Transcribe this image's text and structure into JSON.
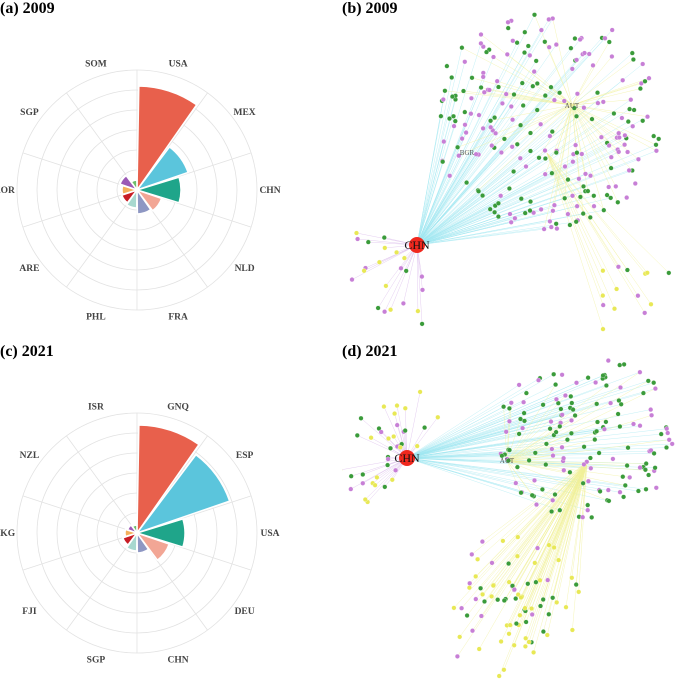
{
  "colors": {
    "palette": [
      "#e8604c",
      "#5bc5dc",
      "#1fa58a",
      "#f2a695",
      "#8e97c3",
      "#a8d8cf",
      "#c81d25",
      "#f4b05c",
      "#7ec8e3",
      "#9b59b6",
      "#6dbd6a"
    ],
    "grid": "#e2e2e2",
    "edge_cyan": "#9fe6f0",
    "edge_yellow": "#f0f09a",
    "edge_purple": "#d9b8ea",
    "node_green": "#3a9b3a",
    "node_purple": "#c77fd6",
    "node_yellow": "#e8e855",
    "hub": "#f0281e"
  },
  "panels": {
    "a": {
      "title": "(a) 2009"
    },
    "b": {
      "title": "(b) 2009",
      "hub_label": "CHN",
      "mid_labels": [
        "AUT",
        "BGR"
      ]
    },
    "c": {
      "title": "(c) 2021"
    },
    "d": {
      "title": "(d) 2021",
      "hub_label": "CHN",
      "mid_labels": [
        "AUT"
      ]
    }
  },
  "chart_data": [
    {
      "panel": "a",
      "type": "bar",
      "subtype": "polar",
      "title": "(a) 2009",
      "categories": [
        "USA",
        "MEX",
        "CHN",
        "NLD",
        "FRA",
        "PHL",
        "ARE",
        "KOR",
        "SGP",
        "SOM"
      ],
      "values": [
        5.2,
        2.7,
        2.2,
        1.3,
        1.2,
        0.9,
        0.8,
        0.75,
        0.9,
        0.5
      ],
      "colors": [
        "#e8604c",
        "#5bc5dc",
        "#1fa58a",
        "#f2a695",
        "#8e97c3",
        "#a8d8cf",
        "#c81d25",
        "#f4b05c",
        "#9b59b6",
        "#6dbd6a"
      ],
      "rlim": [
        0,
        6
      ],
      "grid": true
    },
    {
      "panel": "c",
      "type": "bar",
      "subtype": "polar",
      "title": "(c) 2021",
      "categories": [
        "GNQ",
        "ESP",
        "USA",
        "DEU",
        "CHN",
        "SGP",
        "FJI",
        "HKG",
        "NZL",
        "ISR"
      ],
      "values": [
        5.4,
        4.9,
        2.4,
        1.7,
        1.0,
        0.9,
        0.75,
        0.6,
        0.5,
        0.4
      ],
      "colors": [
        "#e8604c",
        "#5bc5dc",
        "#1fa58a",
        "#f2a695",
        "#8e97c3",
        "#a8d8cf",
        "#c81d25",
        "#f4b05c",
        "#9b59b6",
        "#6dbd6a"
      ],
      "rlim": [
        0,
        6
      ],
      "grid": true
    }
  ]
}
